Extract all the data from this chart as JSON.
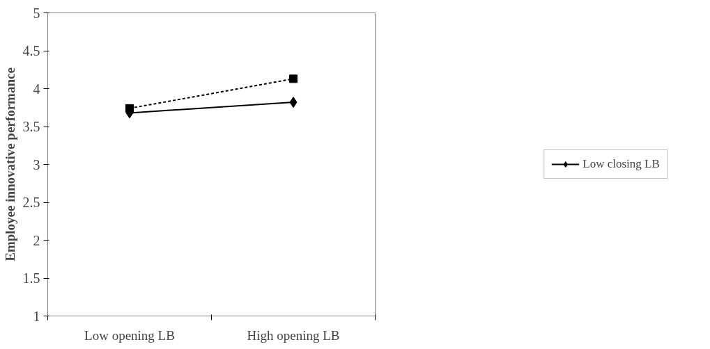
{
  "chart_data": {
    "type": "line",
    "ylabel": "Employee innovative performance",
    "categories": [
      "Low opening LB",
      "High opening LB"
    ],
    "series": [
      {
        "name": "Low closing LB",
        "color": "#000000",
        "values": [
          3.68,
          3.82
        ],
        "marker": "diamond",
        "line_style": "solid"
      },
      {
        "color": "#000000",
        "values": [
          3.74,
          4.13
        ],
        "marker": "square",
        "line_style": "dashed"
      }
    ],
    "ylim": [
      1,
      5
    ],
    "yticks": [
      1,
      1.5,
      2,
      2.5,
      3,
      3.5,
      4,
      4.5,
      5
    ],
    "grid": false,
    "legend": "right"
  }
}
